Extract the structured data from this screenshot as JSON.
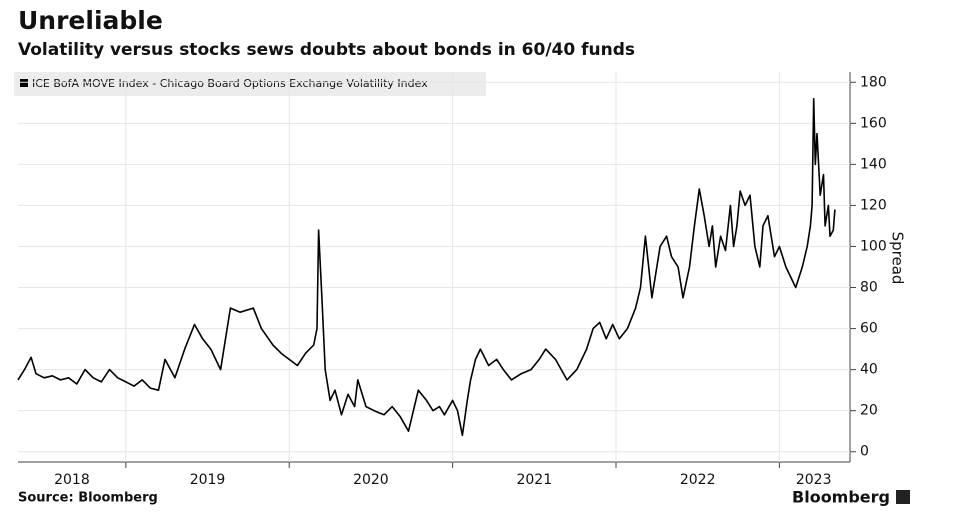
{
  "chart_data": {
    "type": "line",
    "title": "Unreliable",
    "subtitle": "Volatility versus stocks sews doubts about bonds in 60/40 funds",
    "y_label": "Spread",
    "source": "Source: Bloomberg",
    "brand": "Bloomberg",
    "x": [
      2018.34,
      2018.38,
      2018.42,
      2018.45,
      2018.5,
      2018.55,
      2018.6,
      2018.65,
      2018.7,
      2018.75,
      2018.8,
      2018.85,
      2018.9,
      2018.95,
      2019.0,
      2019.05,
      2019.1,
      2019.15,
      2019.2,
      2019.24,
      2019.3,
      2019.36,
      2019.42,
      2019.47,
      2019.52,
      2019.58,
      2019.64,
      2019.7,
      2019.78,
      2019.83,
      2019.9,
      2019.95,
      2020.0,
      2020.05,
      2020.1,
      2020.15,
      2020.17,
      2020.18,
      2020.2,
      2020.22,
      2020.25,
      2020.28,
      2020.32,
      2020.36,
      2020.4,
      2020.42,
      2020.47,
      2020.52,
      2020.58,
      2020.63,
      2020.68,
      2020.73,
      2020.79,
      2020.84,
      2020.88,
      2020.92,
      2020.95,
      2021.0,
      2021.03,
      2021.06,
      2021.09,
      2021.11,
      2021.14,
      2021.17,
      2021.22,
      2021.27,
      2021.31,
      2021.36,
      2021.42,
      2021.48,
      2021.53,
      2021.57,
      2021.63,
      2021.7,
      2021.76,
      2021.82,
      2021.86,
      2021.9,
      2021.94,
      2021.98,
      2022.02,
      2022.07,
      2022.12,
      2022.15,
      2022.18,
      2022.2,
      2022.22,
      2022.27,
      2022.31,
      2022.34,
      2022.38,
      2022.41,
      2022.45,
      2022.48,
      2022.51,
      2022.54,
      2022.57,
      2022.59,
      2022.61,
      2022.64,
      2022.67,
      2022.7,
      2022.72,
      2022.74,
      2022.76,
      2022.79,
      2022.82,
      2022.85,
      2022.88,
      2022.9,
      2022.93,
      2022.97,
      2023.0,
      2023.04,
      2023.1,
      2023.14,
      2023.17,
      2023.19,
      2023.2,
      2023.21,
      2023.22,
      2023.23,
      2023.25,
      2023.27,
      2023.28,
      2023.3,
      2023.31,
      2023.33,
      2023.34
    ],
    "series": [
      {
        "name": "ICE BofA MOVE Index - Chicago Board Options Exchange Volatility Index",
        "color": "#000000",
        "values": [
          35,
          40,
          46,
          38,
          36,
          37,
          35,
          36,
          33,
          40,
          36,
          34,
          40,
          36,
          34,
          32,
          35,
          31,
          30,
          45,
          36,
          50,
          62,
          55,
          50,
          40,
          70,
          68,
          70,
          60,
          52,
          48,
          45,
          42,
          48,
          52,
          60,
          108,
          75,
          40,
          25,
          30,
          18,
          28,
          22,
          35,
          22,
          20,
          18,
          22,
          17,
          10,
          30,
          25,
          20,
          22,
          18,
          25,
          20,
          8,
          25,
          35,
          45,
          50,
          42,
          45,
          40,
          35,
          38,
          40,
          45,
          50,
          45,
          35,
          40,
          50,
          60,
          63,
          55,
          62,
          55,
          60,
          70,
          80,
          105,
          90,
          75,
          100,
          105,
          95,
          90,
          75,
          90,
          110,
          128,
          115,
          100,
          110,
          90,
          105,
          98,
          120,
          100,
          110,
          127,
          120,
          125,
          100,
          90,
          110,
          115,
          95,
          100,
          90,
          80,
          90,
          100,
          110,
          120,
          172,
          140,
          155,
          125,
          135,
          110,
          120,
          105,
          108,
          118
        ]
      }
    ],
    "xlim": [
      2018.34,
      2023.42
    ],
    "xticks": [
      2018,
      2019,
      2020,
      2021,
      2022,
      2023
    ],
    "ylim": [
      -5,
      185
    ],
    "yticks": [
      0,
      20,
      40,
      60,
      80,
      100,
      120,
      140,
      160,
      180
    ],
    "grid": true
  }
}
